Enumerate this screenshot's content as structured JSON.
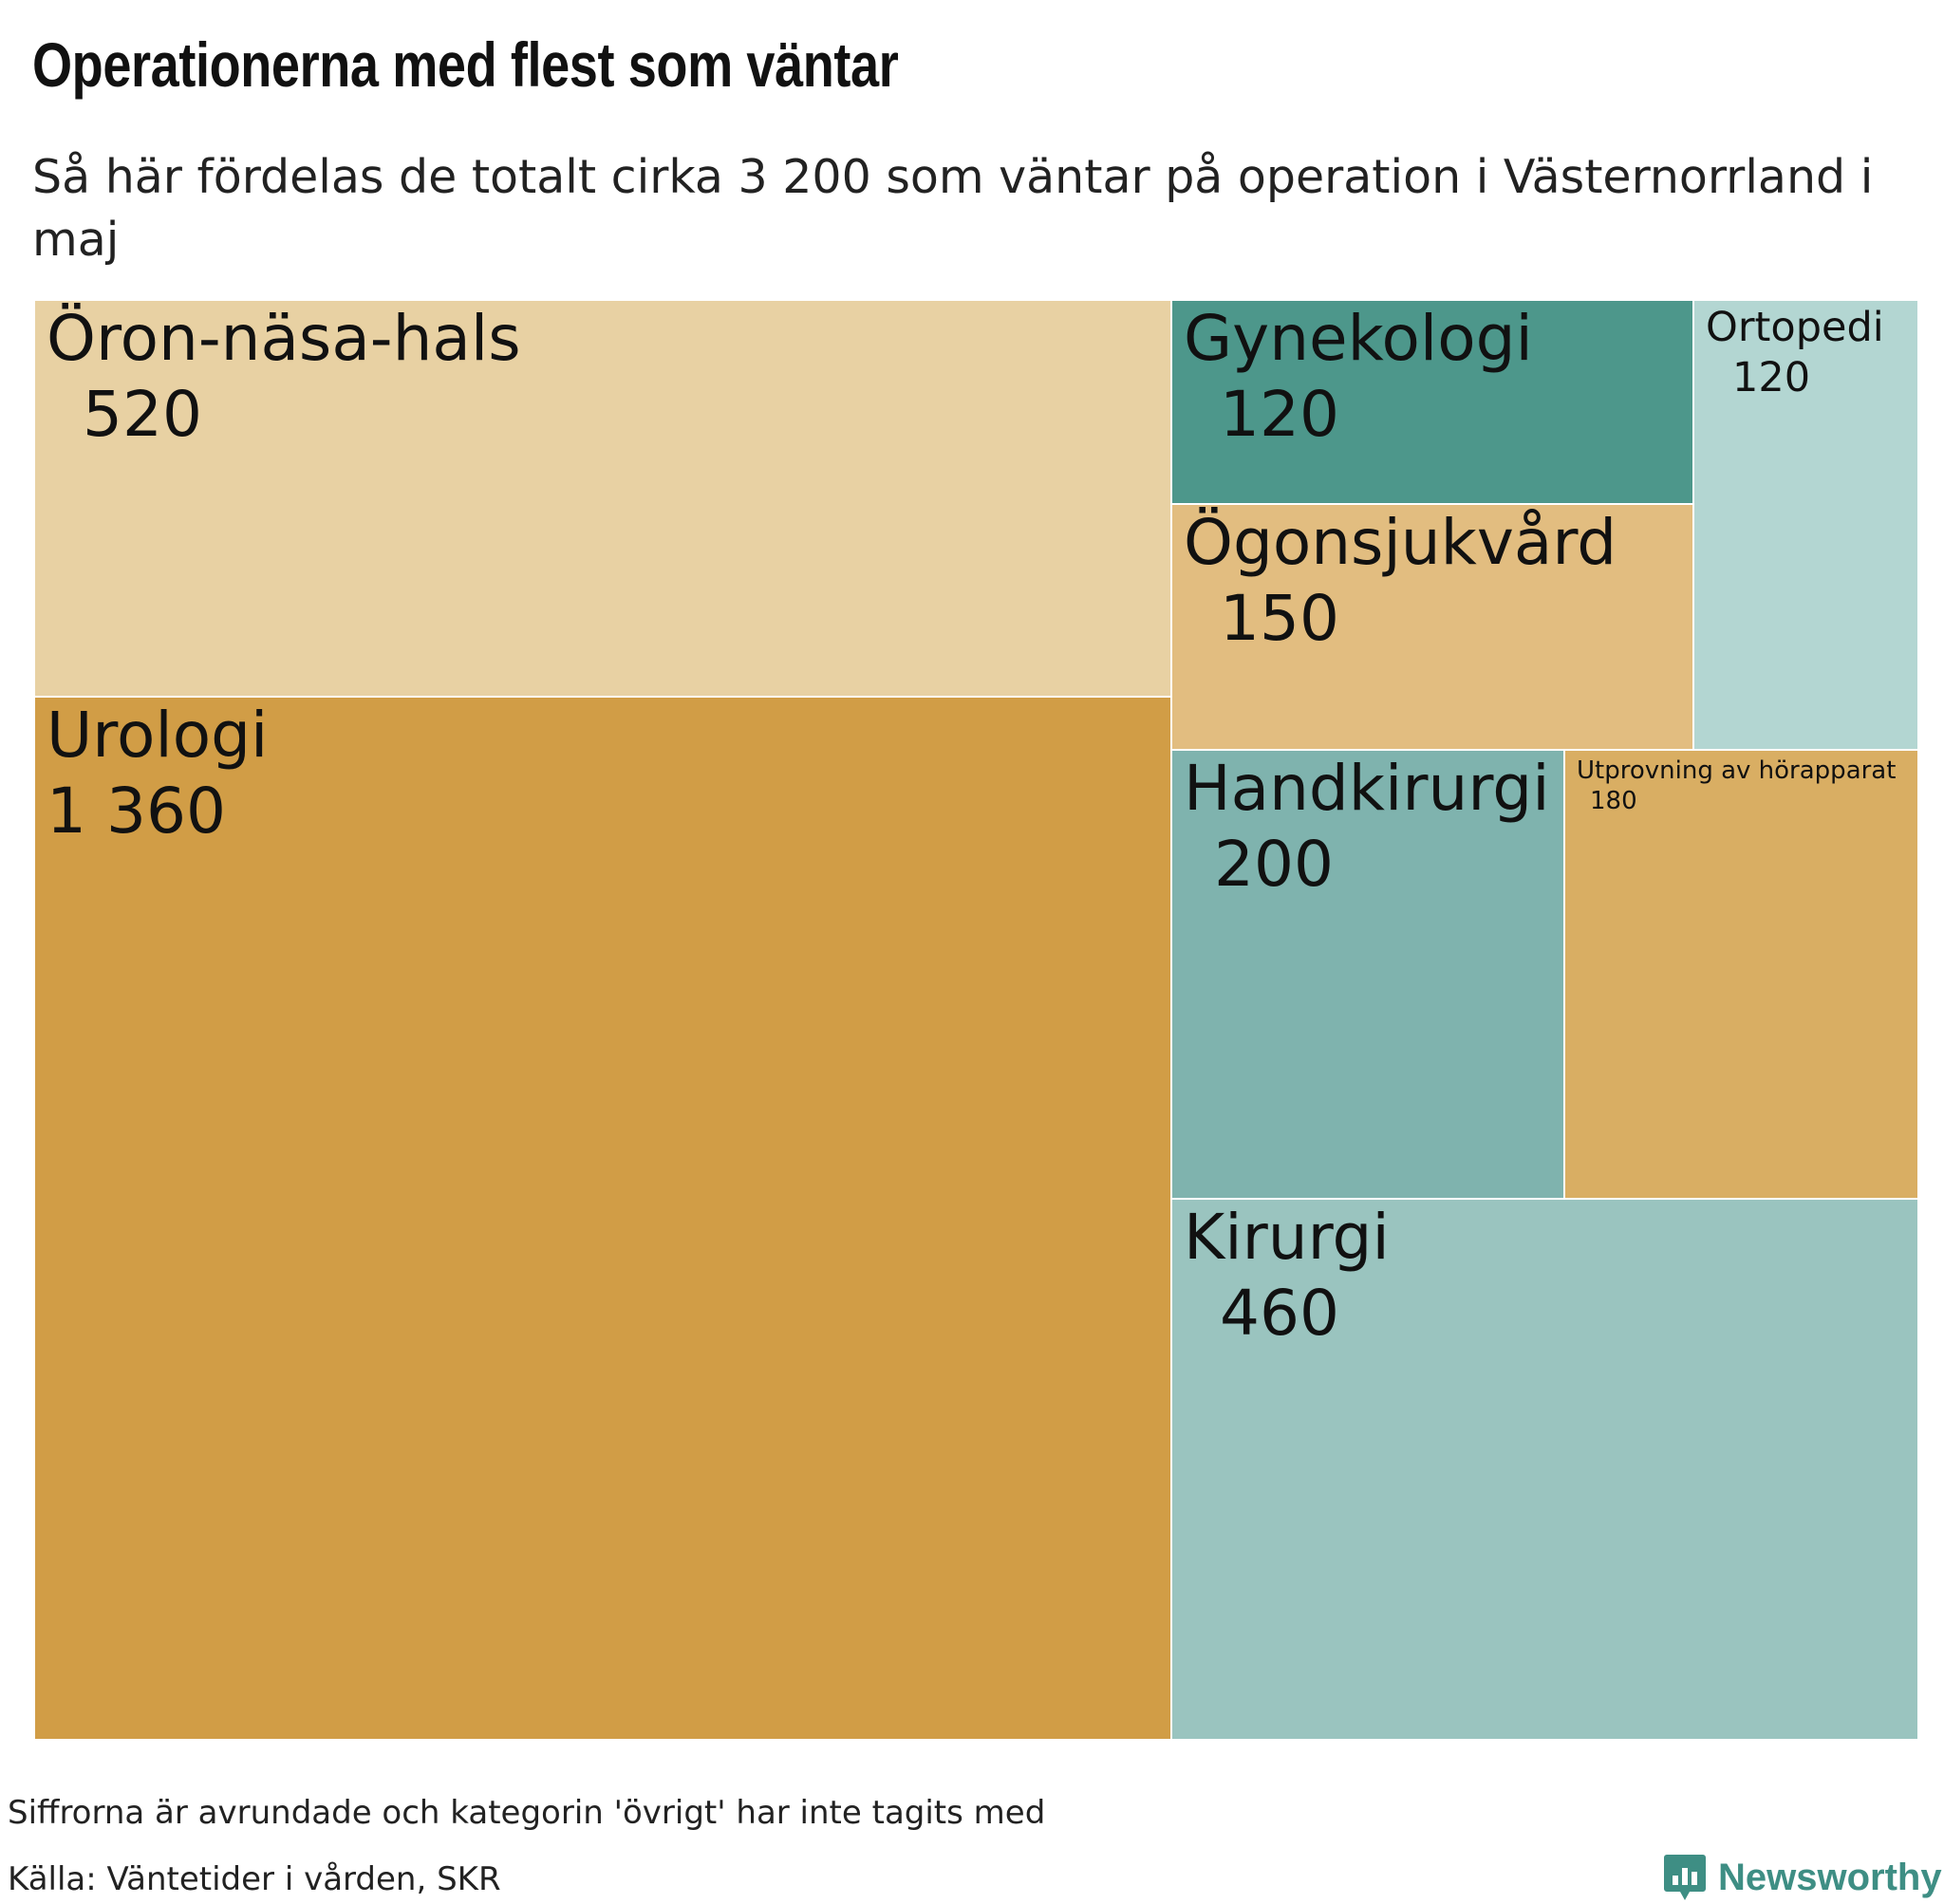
{
  "title": "Operationerna med flest som väntar",
  "subtitle": "Så här fördelas de totalt cirka 3 200 som väntar på operation i Västernorrland i maj",
  "footnote": "Siffrorna är avrundade och kategorin 'övrigt' har inte tagits med",
  "source": "Källa: Väntetider i vården, SKR",
  "brand": "Newsworthy",
  "colors": {
    "background": "#ffffff",
    "text": "#111111",
    "brand": "#3e8e84"
  },
  "chart_data": {
    "type": "treemap",
    "title": "Operationerna med flest som väntar",
    "subtitle": "Så här fördelas de totalt cirka 3 200 som väntar på operation i Västernorrland i maj",
    "categories": [
      {
        "name": "Öron-näsa-hals",
        "value": 520,
        "label": "520",
        "color": "#e8d1a3"
      },
      {
        "name": "Urologi",
        "value": 1360,
        "label": "1 360",
        "color": "#d19d46"
      },
      {
        "name": "Gynekologi",
        "value": 120,
        "label": "120",
        "color": "#4d978b"
      },
      {
        "name": "Ortopedi",
        "value": 120,
        "label": "120",
        "color": "#b3d6d2"
      },
      {
        "name": "Ögonsjukvård",
        "value": 150,
        "label": "150",
        "color": "#e2bd80"
      },
      {
        "name": "Handkirurgi",
        "value": 200,
        "label": "200",
        "color": "#7fb3ae"
      },
      {
        "name": "Utprovning av hörapparat",
        "value": 180,
        "label": "180",
        "color": "#d9ae63"
      },
      {
        "name": "Kirurgi",
        "value": 460,
        "label": "460",
        "color": "#9ac4bf"
      }
    ]
  }
}
